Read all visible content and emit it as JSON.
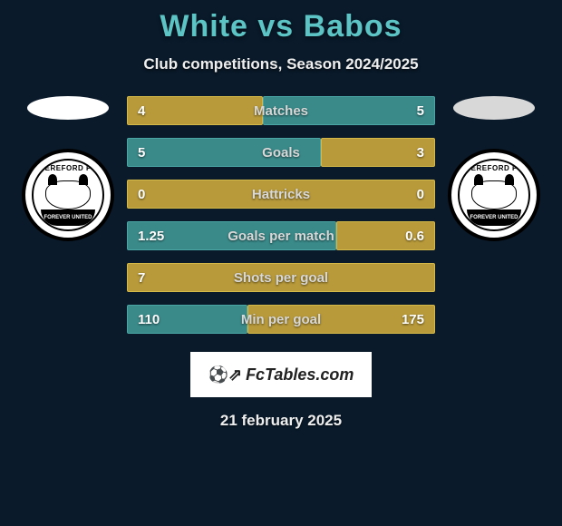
{
  "header": {
    "player1": "White",
    "vs": "vs",
    "player2": "Babos",
    "subtitle": "Club competitions, Season 2024/2025"
  },
  "crest": {
    "top_text": "HEREFORD FC",
    "banner_text": "FOREVER UNITED",
    "year": "2015"
  },
  "colors": {
    "background": "#0a1a2a",
    "title_color": "#5cc4c4",
    "bar_yellow_fill": "#b89a3a",
    "bar_yellow_border": "#d4b848",
    "bar_teal_fill": "#3a8a8a",
    "bar_teal_border": "#4aa5a5"
  },
  "stats": [
    {
      "label": "Matches",
      "left_val": "4",
      "right_val": "5",
      "left_pct": 44,
      "right_pct": 56,
      "left_color": "yellow",
      "right_color": "teal"
    },
    {
      "label": "Goals",
      "left_val": "5",
      "right_val": "3",
      "left_pct": 63,
      "right_pct": 37,
      "left_color": "teal",
      "right_color": "yellow"
    },
    {
      "label": "Hattricks",
      "left_val": "0",
      "right_val": "0",
      "left_pct": 100,
      "right_pct": 0,
      "left_color": "yellow",
      "right_color": "teal"
    },
    {
      "label": "Goals per match",
      "left_val": "1.25",
      "right_val": "0.6",
      "left_pct": 68,
      "right_pct": 32,
      "left_color": "teal",
      "right_color": "yellow"
    },
    {
      "label": "Shots per goal",
      "left_val": "7",
      "right_val": "",
      "left_pct": 100,
      "right_pct": 0,
      "left_color": "yellow",
      "right_color": "teal"
    },
    {
      "label": "Min per goal",
      "left_val": "110",
      "right_val": "175",
      "left_pct": 39,
      "right_pct": 61,
      "left_color": "teal",
      "right_color": "yellow"
    }
  ],
  "brand": {
    "name": "FcTables.com"
  },
  "date": "21 february 2025"
}
